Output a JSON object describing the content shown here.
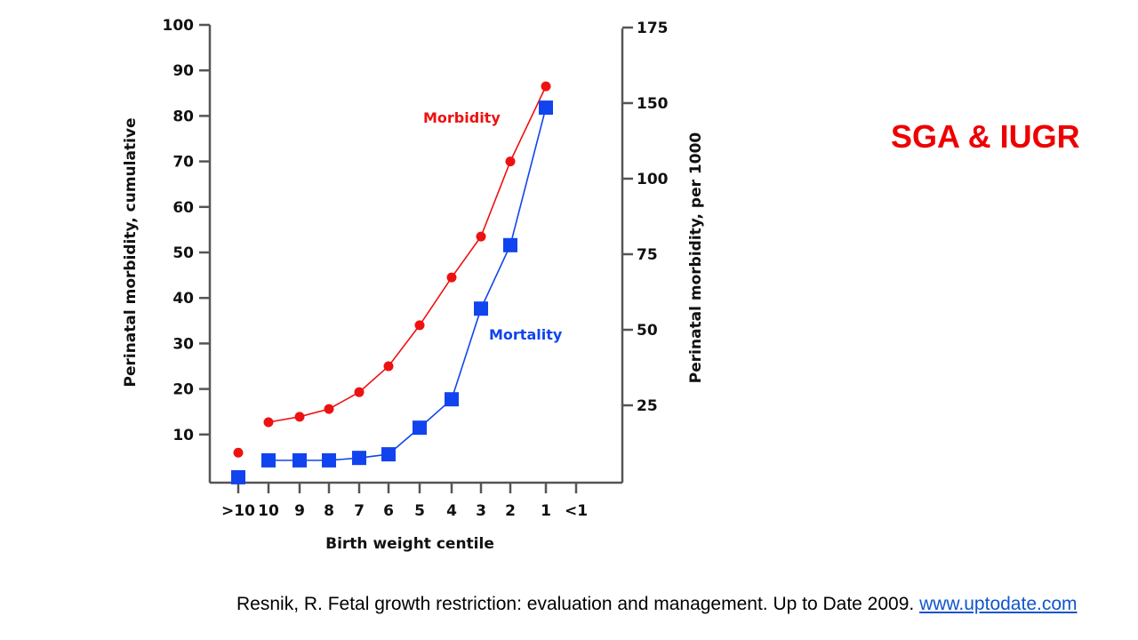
{
  "slide": {
    "title": "SGA & IUGR",
    "citation_text": "Resnik, R. Fetal growth restriction: evaluation and management. Up to Date 2009. ",
    "citation_link": "www.uptodate.com"
  },
  "chart_data": {
    "type": "line",
    "title": "",
    "xlabel": "Birth weight centile",
    "ylabel": "Perinatal morbidity, cumulative",
    "y2label": "Perinatal morbidity, per 1000",
    "categories": [
      ">10",
      "10",
      "9",
      "8",
      "7",
      "6",
      "5",
      "4",
      "3",
      "2",
      "1",
      "<1"
    ],
    "ylim": [
      0,
      100
    ],
    "yticks": [
      10,
      20,
      30,
      40,
      50,
      60,
      70,
      80,
      90,
      100
    ],
    "y2ticks": [
      25,
      50,
      75,
      100,
      150,
      175
    ],
    "grid": false,
    "series": [
      {
        "name": "Morbidity",
        "axis": "left",
        "color": "#ee1111",
        "marker": "circle",
        "values": [
          6,
          12.7,
          13.9,
          15.6,
          19.3,
          25,
          34,
          44.5,
          53.5,
          70,
          86.5,
          null
        ]
      },
      {
        "name": "Mortality",
        "axis": "right",
        "color": "#1144ee",
        "marker": "square",
        "values": [
          1.2,
          6.8,
          6.8,
          6.8,
          7.6,
          8.8,
          17.6,
          27,
          57,
          78,
          147,
          null
        ]
      }
    ]
  }
}
